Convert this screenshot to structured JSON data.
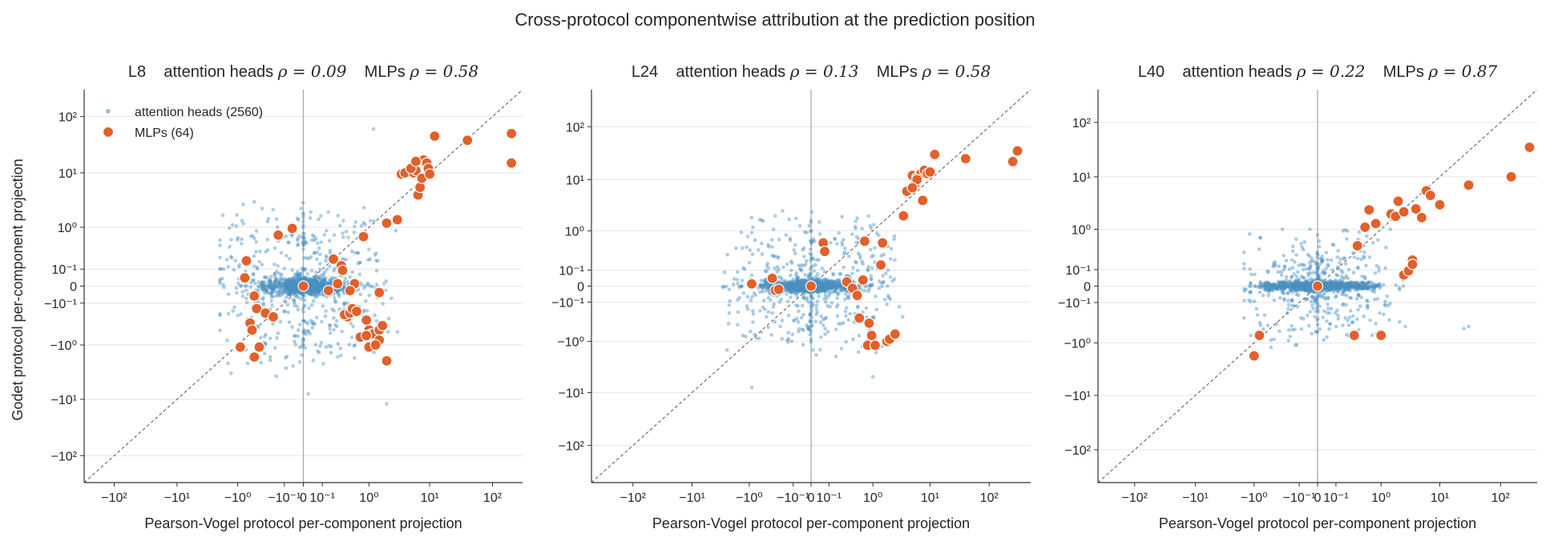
{
  "figure": {
    "title": "Cross-protocol componentwise attribution at the prediction position",
    "ylabel": "Godet protocol per-component projection"
  },
  "legend": {
    "heads_label": "attention heads (2560)",
    "mlps_label": "MLPs (64)"
  },
  "colors": {
    "heads": "#4a90c2",
    "mlps": "#e2602a",
    "mlp_edge": "#ffffff",
    "axis": "#333333",
    "grid": "#e6e6e6",
    "zero_line": "#aaaaaa",
    "diagonal": "#555555"
  },
  "chart_data": [
    {
      "type": "scatter",
      "layer": "L8",
      "title": {
        "layer": "L8",
        "heads_text": "attention heads",
        "heads_rho": "ρ = 0.09",
        "mlps_text": "MLPs",
        "mlps_rho": "ρ = 0.58"
      },
      "xlabel": "Pearson-Vogel protocol per-component projection",
      "ylabel": "Godet protocol per-component projection",
      "scale": "symlog",
      "xlim": [
        -300,
        300
      ],
      "ylim": [
        -300,
        300
      ],
      "xticks": [
        "−10²",
        "−10¹",
        "−10⁰",
        "−10⁻¹",
        "0",
        "10⁻¹",
        "10⁰",
        "10¹",
        "10²"
      ],
      "yticks": [
        "−10²",
        "−10¹",
        "−10⁰",
        "−10⁻¹",
        "0",
        "10⁻¹",
        "10⁰",
        "10¹",
        "10²"
      ],
      "grid": "horizontal",
      "legend_position": "top-left",
      "series": [
        {
          "name": "attention heads",
          "count": 2560,
          "rho": 0.09,
          "cloud": {
            "core_x_sd": 0.05,
            "core_y_sd": 0.02,
            "spread_x_sd": 0.5,
            "spread_y_sd": 0.5,
            "x_range": [
              -2.0,
              10
            ],
            "y_range": [
              -15,
              60
            ],
            "outer_points": [
              [
                -1.8,
                1.7
              ],
              [
                1.2,
                60
              ],
              [
                -0.5,
                3.0
              ],
              [
                2.0,
                -12
              ],
              [
                -0.02,
                -0.5
              ],
              [
                0.02,
                -8
              ]
            ]
          }
        },
        {
          "name": "MLPs",
          "count": 64,
          "rho": 0.58,
          "points": [
            [
              -0.9,
              -1.1
            ],
            [
              -0.6,
              -0.35
            ],
            [
              -0.75,
              0.04
            ],
            [
              -0.7,
              0.18
            ],
            [
              -0.55,
              -0.5
            ],
            [
              -0.5,
              -1.7
            ],
            [
              -0.5,
              -0.05
            ],
            [
              -0.45,
              -0.15
            ],
            [
              -0.4,
              -1.1
            ],
            [
              -0.3,
              -0.2
            ],
            [
              -0.2,
              -0.25
            ],
            [
              -0.15,
              0.7
            ],
            [
              -0.05,
              0.95
            ],
            [
              0,
              0
            ],
            [
              0.15,
              -0.02
            ],
            [
              0.2,
              0.2
            ],
            [
              0.25,
              0.01
            ],
            [
              0.3,
              0.13
            ],
            [
              0.32,
              0.09
            ],
            [
              0.4,
              -0.25
            ],
            [
              0.55,
              0.01
            ],
            [
              0.35,
              -0.22
            ],
            [
              0.45,
              -0.2
            ],
            [
              0.5,
              -0.15
            ],
            [
              0.6,
              -0.18
            ],
            [
              0.7,
              -0.7
            ],
            [
              0.8,
              0.65
            ],
            [
              0.9,
              -0.3
            ],
            [
              1.0,
              -0.5
            ],
            [
              1.1,
              -0.6
            ],
            [
              1.2,
              -0.6
            ],
            [
              1.4,
              -0.9
            ],
            [
              1.5,
              -0.5
            ],
            [
              1.7,
              -0.4
            ],
            [
              2.0,
              -2.0
            ],
            [
              1.5,
              -0.8
            ],
            [
              1.0,
              -1.1
            ],
            [
              0.9,
              -0.65
            ],
            [
              1.3,
              -1.0
            ],
            [
              1.5,
              -0.03
            ],
            [
              0.45,
              -0.02
            ],
            [
              2.0,
              1.2
            ],
            [
              3.0,
              1.4
            ],
            [
              3.5,
              9.5
            ],
            [
              4.0,
              10
            ],
            [
              5.5,
              10
            ],
            [
              6.0,
              11
            ],
            [
              6.5,
              4
            ],
            [
              7.0,
              5.5
            ],
            [
              7.5,
              8
            ],
            [
              8.0,
              17
            ],
            [
              9.0,
              15
            ],
            [
              9.5,
              12
            ],
            [
              10,
              9.5
            ],
            [
              12,
              45
            ],
            [
              40,
              38
            ],
            [
              200,
              50
            ],
            [
              200,
              15
            ],
            [
              5,
              12
            ],
            [
              6,
              16
            ]
          ]
        }
      ]
    },
    {
      "type": "scatter",
      "layer": "L24",
      "title": {
        "layer": "L24",
        "heads_text": "attention heads",
        "heads_rho": "ρ = 0.13",
        "mlps_text": "MLPs",
        "mlps_rho": "ρ = 0.58"
      },
      "xlabel": "Pearson-Vogel protocol per-component projection",
      "scale": "symlog",
      "xlim": [
        -500,
        500
      ],
      "ylim": [
        -500,
        500
      ],
      "xticks": [
        "−10²",
        "−10¹",
        "−10⁰",
        "−10⁻¹",
        "0",
        "10⁻¹",
        "10⁰",
        "10¹",
        "10²"
      ],
      "yticks": [
        "−10²",
        "−10¹",
        "−10⁰",
        "−10⁻¹",
        "0",
        "10⁻¹",
        "10⁰",
        "10¹",
        "10²"
      ],
      "grid": "horizontal",
      "series": [
        {
          "name": "attention heads",
          "count": 2560,
          "rho": 0.13,
          "cloud": {
            "core_x_sd": 0.06,
            "core_y_sd": 0.015,
            "spread_x_sd": 0.6,
            "spread_y_sd": 0.35,
            "x_range": [
              -3,
              6
            ],
            "y_range": [
              -3,
              5
            ],
            "outer_points": [
              [
                -2.5,
                -1.5
              ],
              [
                -0.9,
                -8
              ],
              [
                1.0,
                -5
              ],
              [
                0.5,
                1.8
              ],
              [
                -0.3,
                2.0
              ]
            ]
          }
        },
        {
          "name": "MLPs",
          "count": 64,
          "rho": 0.58,
          "points": [
            [
              -0.9,
              0.01
            ],
            [
              -0.35,
              0.04
            ],
            [
              -0.3,
              -0.02
            ],
            [
              -0.25,
              -0.015
            ],
            [
              0,
              0
            ],
            [
              0.06,
              0.55
            ],
            [
              0.07,
              0.35
            ],
            [
              0.3,
              0.02
            ],
            [
              0.4,
              -0.01
            ],
            [
              0.5,
              -0.05
            ],
            [
              0.55,
              -0.3
            ],
            [
              0.65,
              0.03
            ],
            [
              0.7,
              0.6
            ],
            [
              0.8,
              -1.2
            ],
            [
              0.85,
              -0.4
            ],
            [
              0.95,
              -0.75
            ],
            [
              1.1,
              -1.2
            ],
            [
              1.4,
              0.15
            ],
            [
              1.5,
              0.55
            ],
            [
              1.8,
              -1.0
            ],
            [
              2.0,
              -0.9
            ],
            [
              2.5,
              -0.7
            ],
            [
              3.5,
              2.0
            ],
            [
              4.0,
              6
            ],
            [
              5.0,
              12
            ],
            [
              5.5,
              8
            ],
            [
              6.0,
              11
            ],
            [
              7.0,
              13
            ],
            [
              7.5,
              4
            ],
            [
              8.0,
              15
            ],
            [
              9.0,
              13
            ],
            [
              10,
              14
            ],
            [
              12,
              30
            ],
            [
              40,
              25
            ],
            [
              250,
              22
            ],
            [
              300,
              35
            ],
            [
              6,
              10
            ],
            [
              5,
              7
            ]
          ]
        }
      ]
    },
    {
      "type": "scatter",
      "layer": "L40",
      "title": {
        "layer": "L40",
        "heads_text": "attention heads",
        "heads_rho": "ρ = 0.22",
        "mlps_text": "MLPs",
        "mlps_rho": "ρ = 0.87"
      },
      "xlabel": "Pearson-Vogel protocol per-component projection",
      "scale": "symlog",
      "xlim": [
        -400,
        400
      ],
      "ylim": [
        -400,
        400
      ],
      "xticks": [
        "−10²",
        "−10¹",
        "−10⁰",
        "−10⁻¹",
        "0",
        "10⁻¹",
        "10⁰",
        "10¹",
        "10²"
      ],
      "yticks": [
        "−10²",
        "−10¹",
        "−10⁰",
        "−10⁻¹",
        "0",
        "10⁻¹",
        "10⁰",
        "10¹",
        "10²"
      ],
      "grid": "horizontal",
      "series": [
        {
          "name": "attention heads",
          "count": 2560,
          "rho": 0.22,
          "cloud": {
            "core_x_sd": 0.08,
            "core_y_sd": 0.01,
            "spread_x_sd": 0.4,
            "spread_y_sd": 0.2,
            "x_range": [
              -1.5,
              30
            ],
            "y_range": [
              -1.5,
              1.0
            ],
            "outer_points": [
              [
                -1.2,
                0.8
              ],
              [
                25,
                -0.5
              ],
              [
                30,
                -0.45
              ],
              [
                -0.2,
                -0.9
              ]
            ]
          }
        },
        {
          "name": "MLPs",
          "count": 64,
          "rho": 0.87,
          "points": [
            [
              -1.0,
              -1.8
            ],
            [
              -0.8,
              -0.7
            ],
            [
              0,
              0
            ],
            [
              0.3,
              -0.7
            ],
            [
              0.35,
              0.45
            ],
            [
              0.5,
              1.1
            ],
            [
              0.6,
              2.4
            ],
            [
              0.8,
              1.3
            ],
            [
              1.0,
              -0.7
            ],
            [
              1.5,
              2.0
            ],
            [
              1.8,
              1.8
            ],
            [
              2.0,
              3.5
            ],
            [
              2.5,
              0.06
            ],
            [
              3.0,
              0.09
            ],
            [
              3.5,
              0.2
            ],
            [
              4.0,
              2.5
            ],
            [
              5.0,
              1.7
            ],
            [
              6.0,
              5.5
            ],
            [
              7.0,
              4.5
            ],
            [
              10,
              3.0
            ],
            [
              30,
              7
            ],
            [
              150,
              10
            ],
            [
              300,
              35
            ],
            [
              2.5,
              2.2
            ],
            [
              3.5,
              0.15
            ]
          ]
        }
      ]
    }
  ]
}
